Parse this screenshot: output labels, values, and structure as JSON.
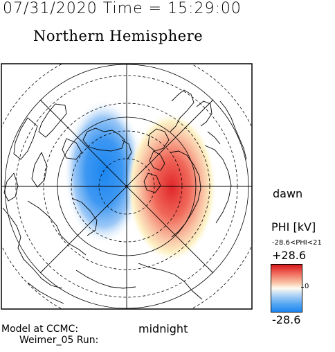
{
  "header": {
    "datetime": "07/31/2020 Time = 15:29:00",
    "title": "Northern Hemisphere"
  },
  "map": {
    "dawn_label": "dawn",
    "midnight_label": "midnight",
    "field_description": "electric potential, negative cell on dusk side, positive cell on dawn side"
  },
  "colorbar": {
    "title": "PHI [kV]",
    "range_label": "-28.6<PHI<21",
    "max_label": "+28.6",
    "zero_label": "0",
    "min_label": "-28.6",
    "colors": {
      "max": "#d7191c",
      "mid": "#ffffff",
      "min": "#1c86f0"
    }
  },
  "credit": {
    "line1": "Model at CCMC:",
    "line2": "Weimer_05 Run:"
  }
}
